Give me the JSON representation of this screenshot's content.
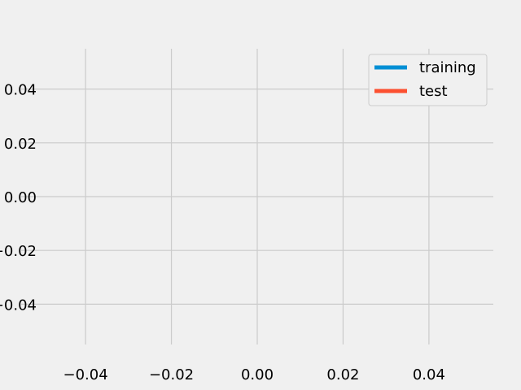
{
  "chart_data": {
    "type": "line",
    "title": "",
    "xlabel": "",
    "ylabel": "",
    "xlim": [
      -0.055,
      0.055
    ],
    "ylim": [
      -0.055,
      0.055
    ],
    "x_ticks": [
      -0.04,
      -0.02,
      0.0,
      0.02,
      0.04
    ],
    "x_tick_labels": [
      "−0.04",
      "−0.02",
      "0.00",
      "0.02",
      "0.04"
    ],
    "y_ticks": [
      0.04,
      0.02,
      0.0,
      -0.02,
      -0.04
    ],
    "y_tick_labels": [
      "0.04",
      "0.02",
      "0.00",
      "−0.02",
      "−0.04"
    ],
    "grid": true,
    "legend_position": "top-right",
    "series": [
      {
        "name": "training",
        "color": "#008fd5",
        "x": [],
        "y": []
      },
      {
        "name": "test",
        "color": "#fc4f30",
        "x": [],
        "y": []
      }
    ]
  }
}
